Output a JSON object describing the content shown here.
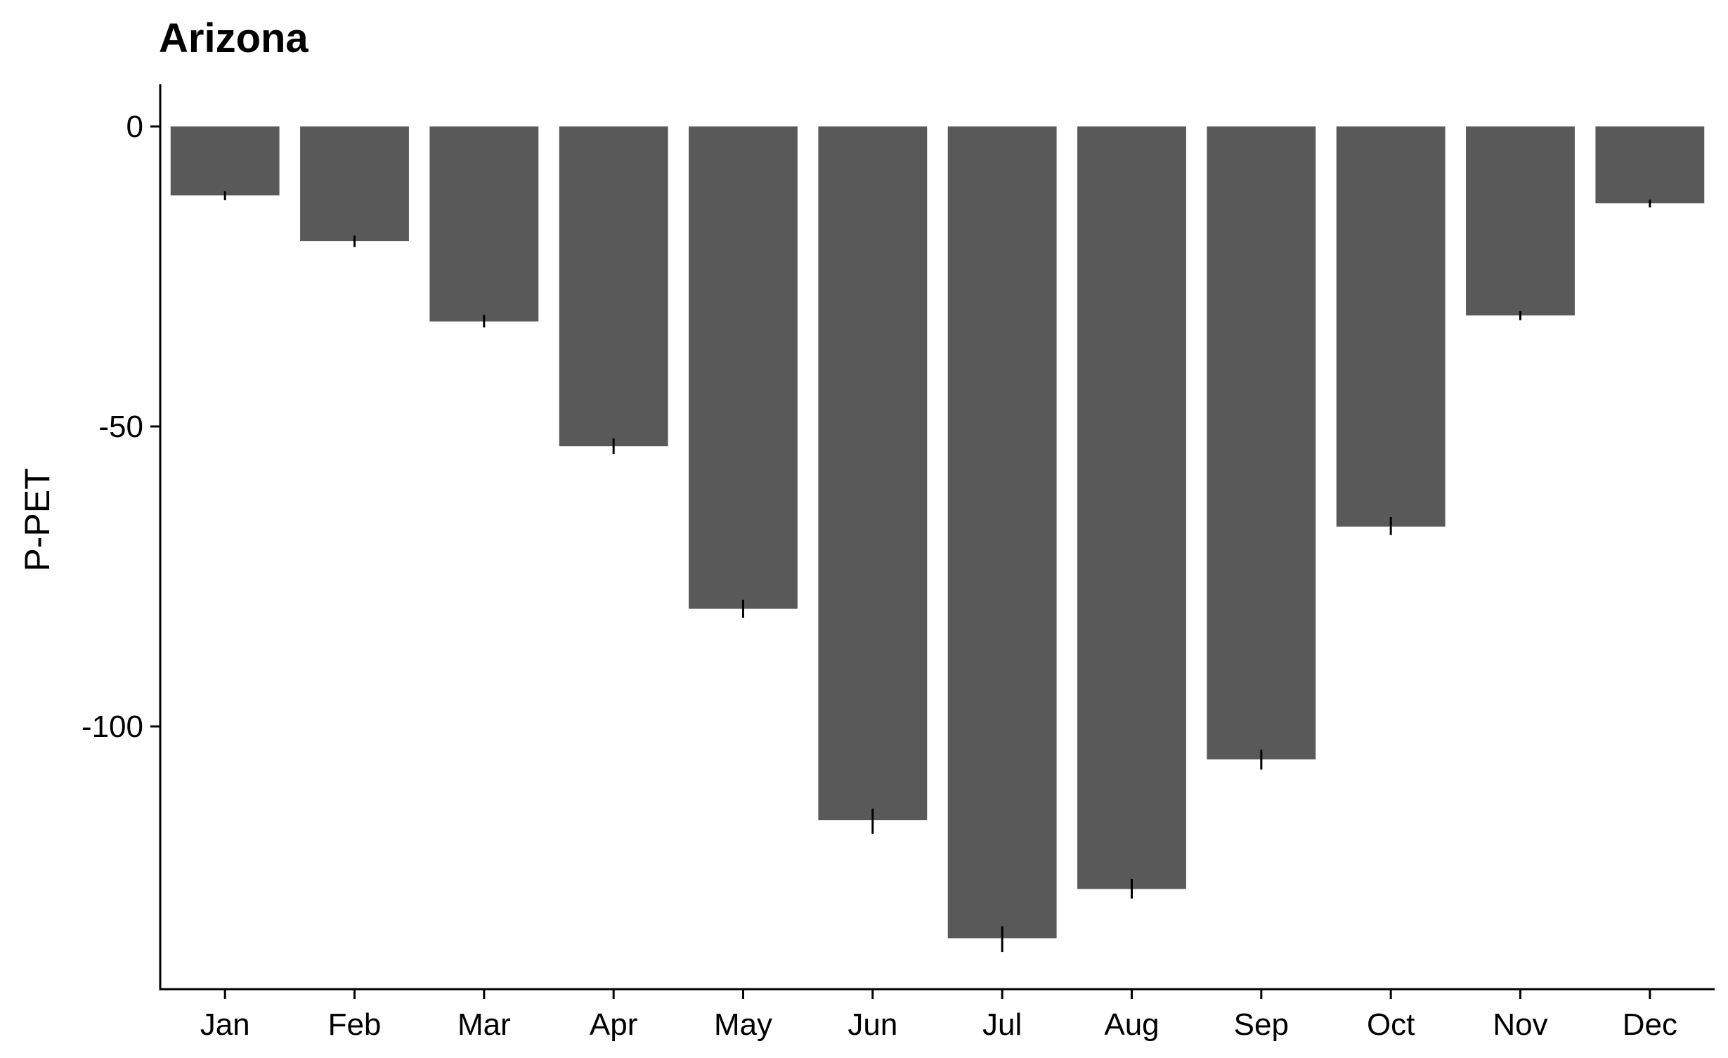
{
  "chart_data": {
    "type": "bar",
    "title": "Arizona",
    "xlabel": "",
    "ylabel": "P-PET",
    "categories": [
      "Jan",
      "Feb",
      "Mar",
      "Apr",
      "May",
      "Jun",
      "Jul",
      "Aug",
      "Sep",
      "Oct",
      "Nov",
      "Dec"
    ],
    "values": [
      -11.5,
      -19.1,
      -32.5,
      -53.3,
      -80.4,
      -115.6,
      -135.3,
      -127.1,
      -105.5,
      -66.7,
      -31.5,
      -12.8
    ],
    "error_low": [
      -12.3,
      -20.1,
      -33.5,
      -54.6,
      -81.9,
      -117.9,
      -137.6,
      -128.7,
      -107.2,
      -68.1,
      -32.3,
      -13.5
    ],
    "error_high": [
      -10.8,
      -18.2,
      -31.4,
      -52.0,
      -78.9,
      -113.7,
      -133.3,
      -125.4,
      -103.9,
      -65.1,
      -30.8,
      -12.2
    ],
    "yticks": [
      0,
      -50,
      -100
    ],
    "ylim": [
      -143,
      7
    ],
    "grid": false,
    "colors": {
      "bar": "#595959",
      "error_bar": "#000000",
      "axis": "#000000"
    }
  }
}
